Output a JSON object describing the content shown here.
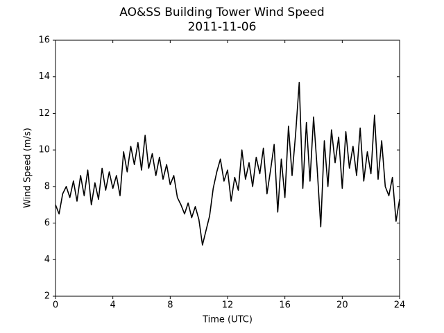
{
  "chart_data": {
    "type": "line",
    "title": "AO&SS Building Tower Wind Speed",
    "subtitle": "2011-11-06",
    "x_label": "Time (UTC)",
    "y_label": "Wind Speed (m/s)",
    "x": [
      0,
      0.25,
      0.5,
      0.75,
      1,
      1.25,
      1.5,
      1.75,
      2,
      2.25,
      2.5,
      2.75,
      3,
      3.25,
      3.5,
      3.75,
      4,
      4.25,
      4.5,
      4.75,
      5,
      5.25,
      5.5,
      5.75,
      6,
      6.25,
      6.5,
      6.75,
      7,
      7.25,
      7.5,
      7.75,
      8,
      8.25,
      8.5,
      8.75,
      9,
      9.25,
      9.5,
      9.75,
      10,
      10.25,
      10.5,
      10.75,
      11,
      11.25,
      11.5,
      11.75,
      12,
      12.25,
      12.5,
      12.75,
      13,
      13.25,
      13.5,
      13.75,
      14,
      14.25,
      14.5,
      14.75,
      15,
      15.25,
      15.5,
      15.75,
      16,
      16.25,
      16.5,
      16.75,
      17,
      17.25,
      17.5,
      17.75,
      18,
      18.25,
      18.5,
      18.75,
      19,
      19.25,
      19.5,
      19.75,
      20,
      20.25,
      20.5,
      20.75,
      21,
      21.25,
      21.5,
      21.75,
      22,
      22.25,
      22.5,
      22.75,
      23,
      23.25,
      23.5,
      23.75,
      24
    ],
    "series": [
      {
        "color": "#000000",
        "values": [
          7.0,
          6.5,
          7.6,
          8.0,
          7.4,
          8.3,
          7.2,
          8.6,
          7.5,
          8.9,
          7.0,
          8.2,
          7.3,
          9.0,
          7.8,
          8.8,
          7.9,
          8.6,
          7.5,
          9.9,
          8.8,
          10.2,
          9.2,
          10.4,
          8.9,
          10.8,
          9.0,
          9.8,
          8.6,
          9.6,
          8.4,
          9.2,
          8.1,
          8.6,
          7.4,
          7.0,
          6.5,
          7.1,
          6.3,
          6.9,
          6.2,
          4.8,
          5.6,
          6.4,
          7.9,
          8.8,
          9.5,
          8.3,
          8.9,
          7.2,
          8.5,
          7.8,
          10.0,
          8.4,
          9.3,
          8.0,
          9.6,
          8.7,
          10.1,
          7.6,
          8.9,
          10.3,
          6.6,
          9.5,
          7.4,
          11.3,
          8.6,
          10.9,
          13.7,
          7.9,
          11.5,
          8.3,
          11.8,
          9.0,
          5.8,
          10.5,
          8.0,
          11.1,
          9.3,
          10.7,
          7.9,
          11.0,
          9.0,
          10.2,
          8.6,
          11.2,
          8.3,
          9.9,
          8.7,
          11.9,
          8.4,
          10.5,
          8.0,
          7.5,
          8.5,
          6.1,
          7.3
        ]
      }
    ],
    "xlim": [
      0,
      24
    ],
    "xticks": [
      0,
      4,
      8,
      12,
      16,
      20,
      24
    ],
    "ylim": [
      2,
      16
    ],
    "yticks": [
      2,
      4,
      6,
      8,
      10,
      12,
      14,
      16
    ]
  }
}
